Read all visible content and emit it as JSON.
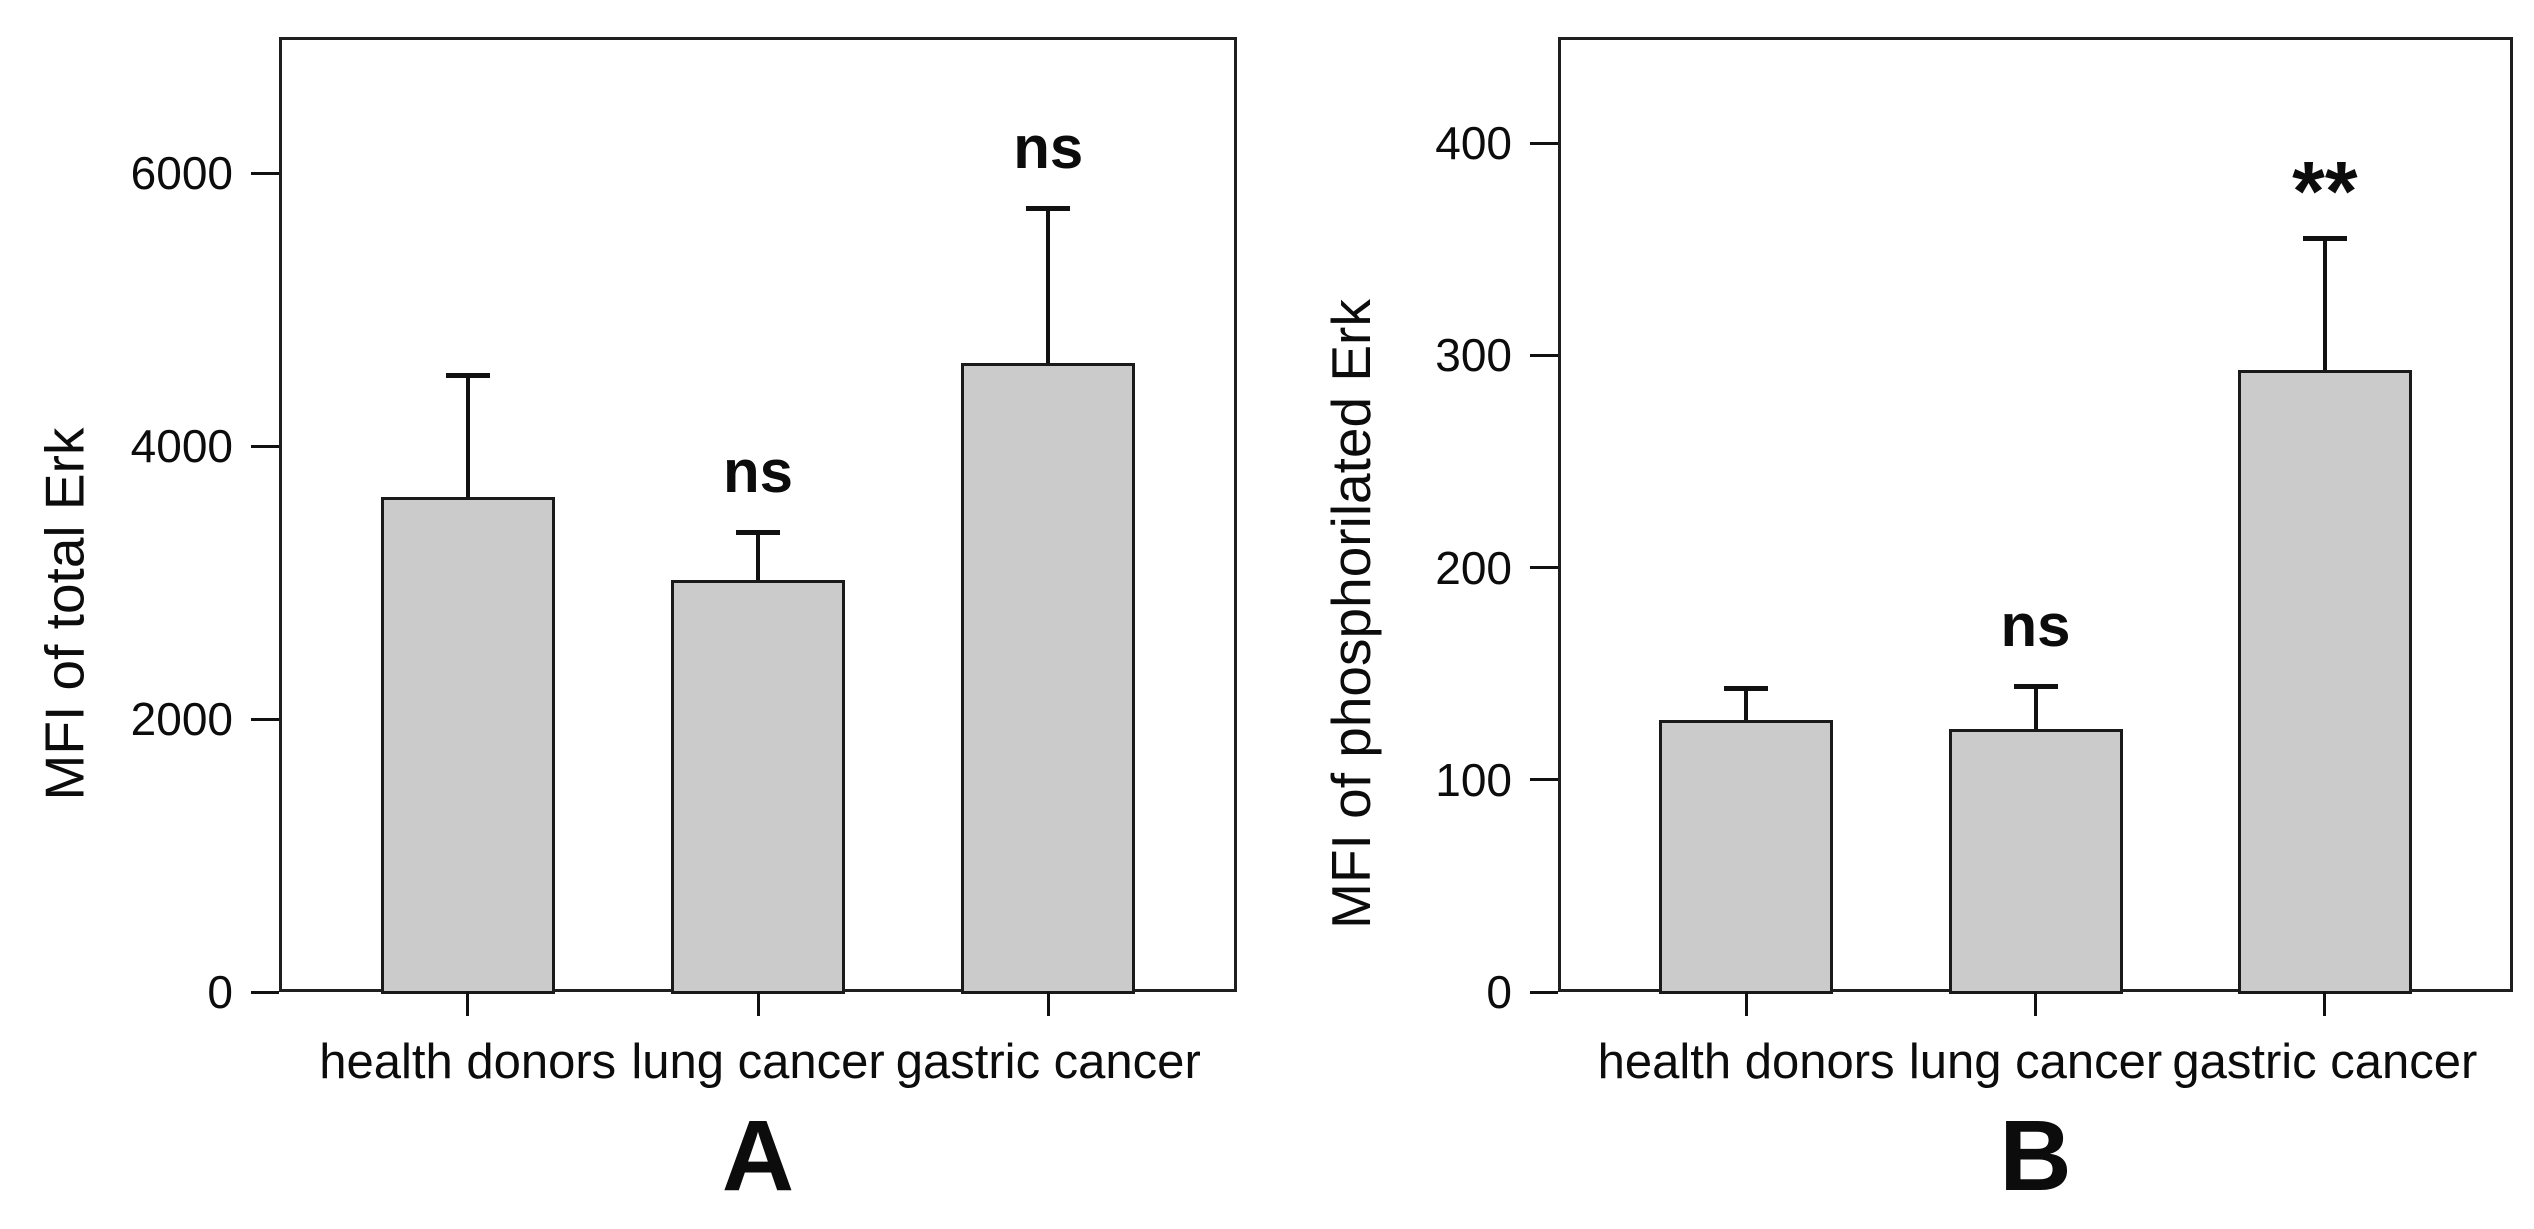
{
  "figure": {
    "background_color": "#ffffff",
    "bar_fill_color": "#cbcbcb",
    "line_color": "#1a1a1a",
    "panel_letters": [
      "A",
      "B"
    ]
  },
  "chart_data": [
    {
      "type": "bar",
      "panel_label": "A",
      "title": "",
      "xlabel": "",
      "ylabel": "MFI of total Erk",
      "categories": [
        "health donors",
        "lung cancer",
        "gastric cancer"
      ],
      "values": [
        3630,
        3020,
        4610
      ],
      "error_plus": [
        890,
        350,
        1135
      ],
      "significance": [
        null,
        "ns",
        "ns"
      ],
      "yticks": [
        0,
        2000,
        4000,
        6000
      ],
      "ylim": [
        0,
        7000
      ],
      "grid": "off",
      "legend": "none",
      "bar_color": "#cbcbcb"
    },
    {
      "type": "bar",
      "panel_label": "B",
      "title": "",
      "xlabel": "",
      "ylabel": "MFI of phosphorilated Erk",
      "categories": [
        "health donors",
        "lung cancer",
        "gastric cancer"
      ],
      "values": [
        128,
        124,
        293
      ],
      "error_plus": [
        15,
        20,
        62
      ],
      "significance": [
        null,
        "ns",
        "**"
      ],
      "yticks": [
        0,
        100,
        200,
        300,
        400
      ],
      "ylim": [
        0,
        450
      ],
      "grid": "off",
      "legend": "none",
      "bar_color": "#cbcbcb"
    }
  ]
}
